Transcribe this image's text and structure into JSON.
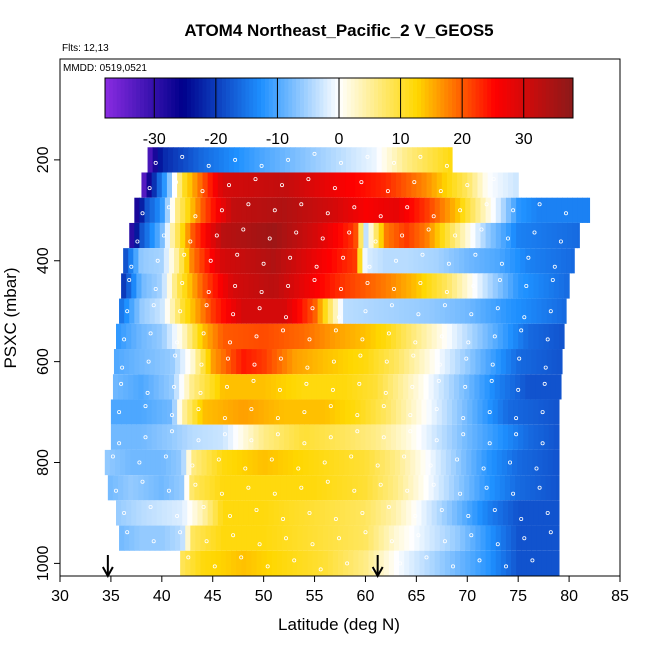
{
  "chart_data": {
    "type": "heatmap",
    "title": "ATOM4 Northeast_Pacific_2 V_GEOS5",
    "flights_text": "Flts: 12,13",
    "dates_text": "MMDD: 0519,0521",
    "xlabel": "Latitude (deg N)",
    "ylabel": "PSXC (mbar)",
    "xlim": [
      30,
      85
    ],
    "ylim": [
      1025,
      0
    ],
    "x_ticks": [
      30,
      35,
      40,
      45,
      50,
      55,
      60,
      65,
      70,
      75,
      80,
      85
    ],
    "y_ticks": [
      200,
      400,
      600,
      800,
      1000
    ],
    "colorbar": {
      "min": -38,
      "max": 38,
      "ticks": [
        -30,
        -20,
        -10,
        0,
        10,
        20,
        30
      ],
      "tick_labels": [
        "-30",
        "-20",
        "-10",
        "0",
        "10",
        "20",
        "30"
      ],
      "colors": [
        "#8a2be2",
        "#00008b",
        "#1e90ff",
        "#ffffff",
        "#ffd700",
        "#ff0000",
        "#8b1a1a"
      ]
    },
    "markers": {
      "type": "arrow",
      "x": [
        34.7,
        61.2
      ]
    },
    "rows": [
      {
        "p": 200,
        "x0": 38.6,
        "x1": 68.5,
        "v": [
          [
            38.6,
            -34
          ],
          [
            40,
            -22
          ],
          [
            44,
            -16
          ],
          [
            50,
            -10
          ],
          [
            56,
            -5
          ],
          [
            61,
            -1
          ],
          [
            64,
            6
          ],
          [
            68.5,
            12
          ]
        ]
      },
      {
        "p": 250,
        "x0": 38.0,
        "x1": 75.0,
        "v": [
          [
            38,
            -36
          ],
          [
            39.5,
            -18
          ],
          [
            40.5,
            -10
          ],
          [
            42,
            10
          ],
          [
            44,
            20
          ],
          [
            46,
            30
          ],
          [
            52,
            32
          ],
          [
            58,
            26
          ],
          [
            62,
            23
          ],
          [
            66,
            17
          ],
          [
            70,
            8
          ],
          [
            72,
            0
          ],
          [
            75,
            -3
          ]
        ]
      },
      {
        "p": 300,
        "x0": 37.3,
        "x1": 82.0,
        "v": [
          [
            37.3,
            -30
          ],
          [
            38.5,
            -18
          ],
          [
            40,
            -12
          ],
          [
            41.5,
            6
          ],
          [
            44,
            20
          ],
          [
            47,
            32
          ],
          [
            52,
            34
          ],
          [
            57,
            30
          ],
          [
            60,
            26
          ],
          [
            63,
            28
          ],
          [
            66,
            22
          ],
          [
            69,
            14
          ],
          [
            71,
            6
          ],
          [
            73,
            -2
          ],
          [
            75,
            -12
          ],
          [
            77,
            -14
          ],
          [
            82,
            -14
          ]
        ]
      },
      {
        "p": 350,
        "x0": 36.8,
        "x1": 81.0,
        "v": [
          [
            36.8,
            -32
          ],
          [
            38,
            -18
          ],
          [
            40,
            -8
          ],
          [
            41,
            4
          ],
          [
            43,
            20
          ],
          [
            46,
            33
          ],
          [
            51,
            36
          ],
          [
            55,
            30
          ],
          [
            57,
            26
          ],
          [
            59,
            22
          ],
          [
            60,
            -4
          ],
          [
            62,
            18
          ],
          [
            64,
            22
          ],
          [
            66,
            18
          ],
          [
            68,
            10
          ],
          [
            70,
            2
          ],
          [
            72,
            -6
          ],
          [
            75,
            -14
          ],
          [
            81,
            -16
          ]
        ]
      },
      {
        "p": 400,
        "x0": 36.2,
        "x1": 80.5,
        "v": [
          [
            36.2,
            -20
          ],
          [
            38,
            -6
          ],
          [
            40,
            -5
          ],
          [
            41.5,
            5
          ],
          [
            43,
            18
          ],
          [
            46,
            30
          ],
          [
            51,
            34
          ],
          [
            56,
            26
          ],
          [
            59,
            22
          ],
          [
            60,
            -2
          ],
          [
            62,
            -4
          ],
          [
            64,
            -4
          ],
          [
            67,
            -5
          ],
          [
            70,
            -8
          ],
          [
            73,
            -10
          ],
          [
            76,
            -14
          ],
          [
            80.5,
            -16
          ]
        ]
      },
      {
        "p": 450,
        "x0": 36.0,
        "x1": 80.0,
        "v": [
          [
            36,
            -22
          ],
          [
            38,
            -8
          ],
          [
            40,
            -5
          ],
          [
            41.5,
            8
          ],
          [
            44,
            20
          ],
          [
            47,
            30
          ],
          [
            51,
            33
          ],
          [
            55,
            26
          ],
          [
            58,
            22
          ],
          [
            60,
            20
          ],
          [
            62,
            18
          ],
          [
            65,
            14
          ],
          [
            68,
            8
          ],
          [
            70,
            2
          ],
          [
            72,
            -4
          ],
          [
            75,
            -12
          ],
          [
            80,
            -16
          ]
        ]
      },
      {
        "p": 500,
        "x0": 35.8,
        "x1": 79.7,
        "v": [
          [
            35.8,
            -16
          ],
          [
            38,
            -6
          ],
          [
            40,
            -3
          ],
          [
            42,
            10
          ],
          [
            45,
            22
          ],
          [
            48,
            30
          ],
          [
            52,
            30
          ],
          [
            55,
            20
          ],
          [
            58,
            -4
          ],
          [
            62,
            -5
          ],
          [
            66,
            -6
          ],
          [
            70,
            -8
          ],
          [
            74,
            -12
          ],
          [
            79.7,
            -16
          ]
        ]
      },
      {
        "p": 550,
        "x0": 35.5,
        "x1": 79.5,
        "v": [
          [
            35.5,
            -12
          ],
          [
            38,
            -8
          ],
          [
            40,
            -6
          ],
          [
            42,
            2
          ],
          [
            44,
            14
          ],
          [
            46,
            20
          ],
          [
            50,
            21
          ],
          [
            54,
            19
          ],
          [
            57,
            16
          ],
          [
            60,
            14
          ],
          [
            62,
            12
          ],
          [
            64,
            8
          ],
          [
            67,
            2
          ],
          [
            70,
            -4
          ],
          [
            73,
            -10
          ],
          [
            76,
            -16
          ],
          [
            79.5,
            -18
          ]
        ]
      },
      {
        "p": 600,
        "x0": 35.3,
        "x1": 79.3,
        "v": [
          [
            35.3,
            -10
          ],
          [
            38,
            -8
          ],
          [
            41,
            -6
          ],
          [
            43,
            2
          ],
          [
            45,
            16
          ],
          [
            48,
            24
          ],
          [
            50,
            22
          ],
          [
            53,
            16
          ],
          [
            56,
            14
          ],
          [
            60,
            12
          ],
          [
            63,
            8
          ],
          [
            66,
            2
          ],
          [
            69,
            -4
          ],
          [
            72,
            -10
          ],
          [
            75,
            -16
          ],
          [
            79.3,
            -18
          ]
        ]
      },
      {
        "p": 650,
        "x0": 35.2,
        "x1": 79.2,
        "v": [
          [
            35.2,
            -8
          ],
          [
            38,
            -10
          ],
          [
            41,
            -6
          ],
          [
            43,
            6
          ],
          [
            46,
            14
          ],
          [
            50,
            14
          ],
          [
            54,
            12
          ],
          [
            58,
            12
          ],
          [
            61,
            10
          ],
          [
            64,
            4
          ],
          [
            67,
            -2
          ],
          [
            70,
            -8
          ],
          [
            73,
            -14
          ],
          [
            76,
            -18
          ],
          [
            79.2,
            -18
          ]
        ]
      },
      {
        "p": 700,
        "x0": 35.0,
        "x1": 79.0,
        "v": [
          [
            35,
            -10
          ],
          [
            38,
            -10
          ],
          [
            41,
            -8
          ],
          [
            42,
            4
          ],
          [
            44,
            14
          ],
          [
            48,
            16
          ],
          [
            52,
            14
          ],
          [
            56,
            14
          ],
          [
            59,
            12
          ],
          [
            62,
            8
          ],
          [
            65,
            2
          ],
          [
            68,
            -4
          ],
          [
            71,
            -10
          ],
          [
            74,
            -16
          ],
          [
            79,
            -18
          ]
        ]
      },
      {
        "p": 750,
        "x0": 35.0,
        "x1": 79.0,
        "v": [
          [
            35,
            -8
          ],
          [
            38,
            -8
          ],
          [
            41,
            -6
          ],
          [
            43,
            -4
          ],
          [
            46,
            -3
          ],
          [
            50,
            6
          ],
          [
            54,
            10
          ],
          [
            58,
            8
          ],
          [
            61,
            6
          ],
          [
            64,
            2
          ],
          [
            67,
            -3
          ],
          [
            70,
            -8
          ],
          [
            73,
            -12
          ],
          [
            76,
            -16
          ],
          [
            79,
            -18
          ]
        ]
      },
      {
        "p": 800,
        "x0": 34.4,
        "x1": 79.0,
        "v": [
          [
            34.4,
            -6
          ],
          [
            37,
            -8
          ],
          [
            40,
            -8
          ],
          [
            42,
            -6
          ],
          [
            43,
            6
          ],
          [
            46,
            12
          ],
          [
            50,
            14
          ],
          [
            55,
            12
          ],
          [
            60,
            10
          ],
          [
            63,
            6
          ],
          [
            66,
            0
          ],
          [
            69,
            -6
          ],
          [
            72,
            -12
          ],
          [
            75,
            -16
          ],
          [
            79,
            -18
          ]
        ]
      },
      {
        "p": 850,
        "x0": 34.7,
        "x1": 79.0,
        "v": [
          [
            34.7,
            -8
          ],
          [
            37,
            -6
          ],
          [
            40,
            -8
          ],
          [
            42,
            -6
          ],
          [
            43,
            8
          ],
          [
            46,
            12
          ],
          [
            50,
            12
          ],
          [
            55,
            12
          ],
          [
            60,
            10
          ],
          [
            63,
            6
          ],
          [
            66,
            0
          ],
          [
            69,
            -6
          ],
          [
            72,
            -12
          ],
          [
            75,
            -16
          ],
          [
            79,
            -18
          ]
        ]
      },
      {
        "p": 900,
        "x0": 35.5,
        "x1": 79.0,
        "v": [
          [
            35.5,
            -6
          ],
          [
            38,
            -4
          ],
          [
            40,
            -3
          ],
          [
            42,
            -2
          ],
          [
            44,
            4
          ],
          [
            46,
            12
          ],
          [
            50,
            12
          ],
          [
            55,
            10
          ],
          [
            60,
            8
          ],
          [
            63,
            4
          ],
          [
            66,
            -2
          ],
          [
            69,
            -8
          ],
          [
            72,
            -14
          ],
          [
            75,
            -18
          ],
          [
            79,
            -18
          ]
        ]
      },
      {
        "p": 950,
        "x0": 35.8,
        "x1": 79.0,
        "v": [
          [
            35.8,
            -8
          ],
          [
            38,
            -6
          ],
          [
            40,
            -6
          ],
          [
            42,
            -4
          ],
          [
            43,
            8
          ],
          [
            46,
            12
          ],
          [
            50,
            12
          ],
          [
            55,
            10
          ],
          [
            60,
            8
          ],
          [
            63,
            2
          ],
          [
            66,
            -2
          ],
          [
            69,
            -6
          ],
          [
            72,
            -12
          ],
          [
            75,
            -18
          ],
          [
            79,
            -18
          ]
        ]
      },
      {
        "p": 1000,
        "x0": 41.8,
        "x1": 79.0,
        "v": [
          [
            41.8,
            8
          ],
          [
            44,
            12
          ],
          [
            48,
            14
          ],
          [
            52,
            12
          ],
          [
            56,
            10
          ],
          [
            60,
            6
          ],
          [
            63,
            0
          ],
          [
            66,
            -4
          ],
          [
            69,
            -8
          ],
          [
            72,
            -12
          ],
          [
            75,
            -18
          ],
          [
            79,
            -18
          ]
        ]
      }
    ]
  }
}
